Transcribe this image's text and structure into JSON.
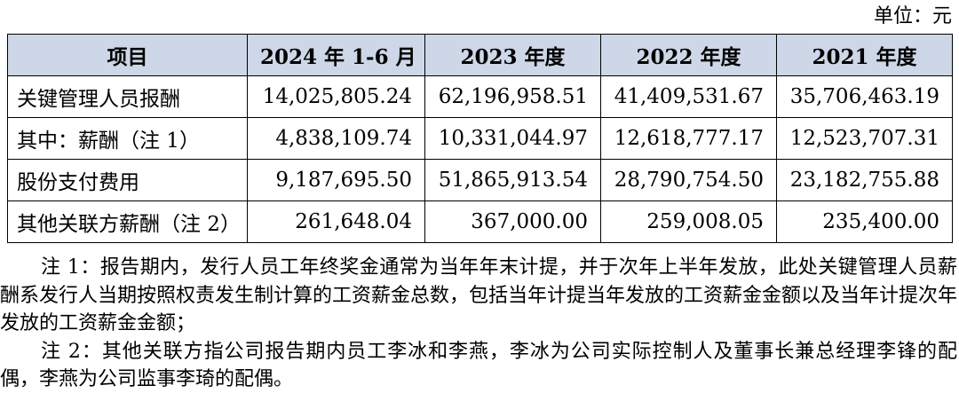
{
  "unit_label": "单位：元",
  "table": {
    "headers": [
      "项目",
      "2024 年 1-6 月",
      "2023 年度",
      "2022 年度",
      "2021 年度"
    ],
    "rows": [
      {
        "label": "关键管理人员报酬",
        "values": [
          "14,025,805.24",
          "62,196,958.51",
          "41,409,531.67",
          "35,706,463.19"
        ]
      },
      {
        "label": "其中：薪酬（注 1）",
        "values": [
          "4,838,109.74",
          "10,331,044.97",
          "12,618,777.17",
          "12,523,707.31"
        ]
      },
      {
        "label": "股份支付费用",
        "values": [
          "9,187,695.50",
          "51,865,913.54",
          "28,790,754.50",
          "23,182,755.88"
        ]
      },
      {
        "label": "其他关联方薪酬（注 2）",
        "values": [
          "261,648.04",
          "367,000.00",
          "259,008.05",
          "235,400.00"
        ]
      }
    ]
  },
  "notes": [
    "注 1：报告期内，发行人员工年终奖金通常为当年年末计提，并于次年上半年发放，此处关键管理人员薪酬系发行人当期按照权责发生制计算的工资薪金总数，包括当年计提当年发放的工资薪金金额以及当年计提次年发放的工资薪金金额；",
    "注 2：其他关联方指公司报告期内员工李冰和李燕，李冰为公司实际控制人及董事长兼总经理李锋的配偶，李燕为公司监事李琦的配偶。"
  ],
  "colors": {
    "header_background": "#cdd7e7",
    "border": "#000000",
    "text": "#000000"
  }
}
